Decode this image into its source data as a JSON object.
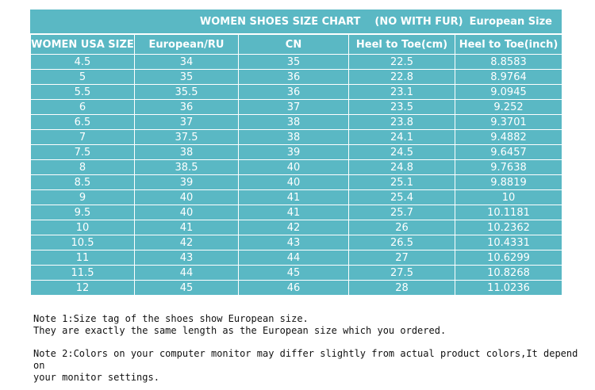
{
  "title": {
    "main": "WOMEN SHOES SIZE CHART",
    "fur": "(NO WITH FUR)",
    "suffix": "European Size"
  },
  "headers": [
    "WOMEN USA SIZE",
    "European/RU",
    "CN",
    "Heel to Toe(cm)",
    "Heel to Toe(inch)"
  ],
  "rows": [
    [
      "4.5",
      "34",
      "35",
      "22.5",
      "8.8583"
    ],
    [
      "5",
      "35",
      "36",
      "22.8",
      "8.9764"
    ],
    [
      "5.5",
      "35.5",
      "36",
      "23.1",
      "9.0945"
    ],
    [
      "6",
      "36",
      "37",
      "23.5",
      "9.252"
    ],
    [
      "6.5",
      "37",
      "38",
      "23.8",
      "9.3701"
    ],
    [
      "7",
      "37.5",
      "38",
      "24.1",
      "9.4882"
    ],
    [
      "7.5",
      "38",
      "39",
      "24.5",
      "9.6457"
    ],
    [
      "8",
      "38.5",
      "40",
      "24.8",
      "9.7638"
    ],
    [
      "8.5",
      "39",
      "40",
      "25.1",
      "9.8819"
    ],
    [
      "9",
      "40",
      "41",
      "25.4",
      "10"
    ],
    [
      "9.5",
      "40",
      "41",
      "25.7",
      "10.1181"
    ],
    [
      "10",
      "41",
      "42",
      "26",
      "10.2362"
    ],
    [
      "10.5",
      "42",
      "43",
      "26.5",
      "10.4331"
    ],
    [
      "11",
      "43",
      "44",
      "27",
      "10.6299"
    ],
    [
      "11.5",
      "44",
      "45",
      "27.5",
      "10.8268"
    ],
    [
      "12",
      "45",
      "46",
      "28",
      "11.0236"
    ]
  ],
  "notes": {
    "note1_line1": "Note 1:Size tag of the shoes show European size.",
    "note1_line2": "They are exactly the same length as the European size which you ordered.",
    "note2_line1": "Note 2:Colors on your computer monitor may differ slightly from actual product colors,It depend on",
    "note2_line2": "your monitor settings."
  },
  "colors": {
    "table_bg": "#5ab8c4",
    "text_light": "#ffffff",
    "text_dark": "#111111"
  }
}
